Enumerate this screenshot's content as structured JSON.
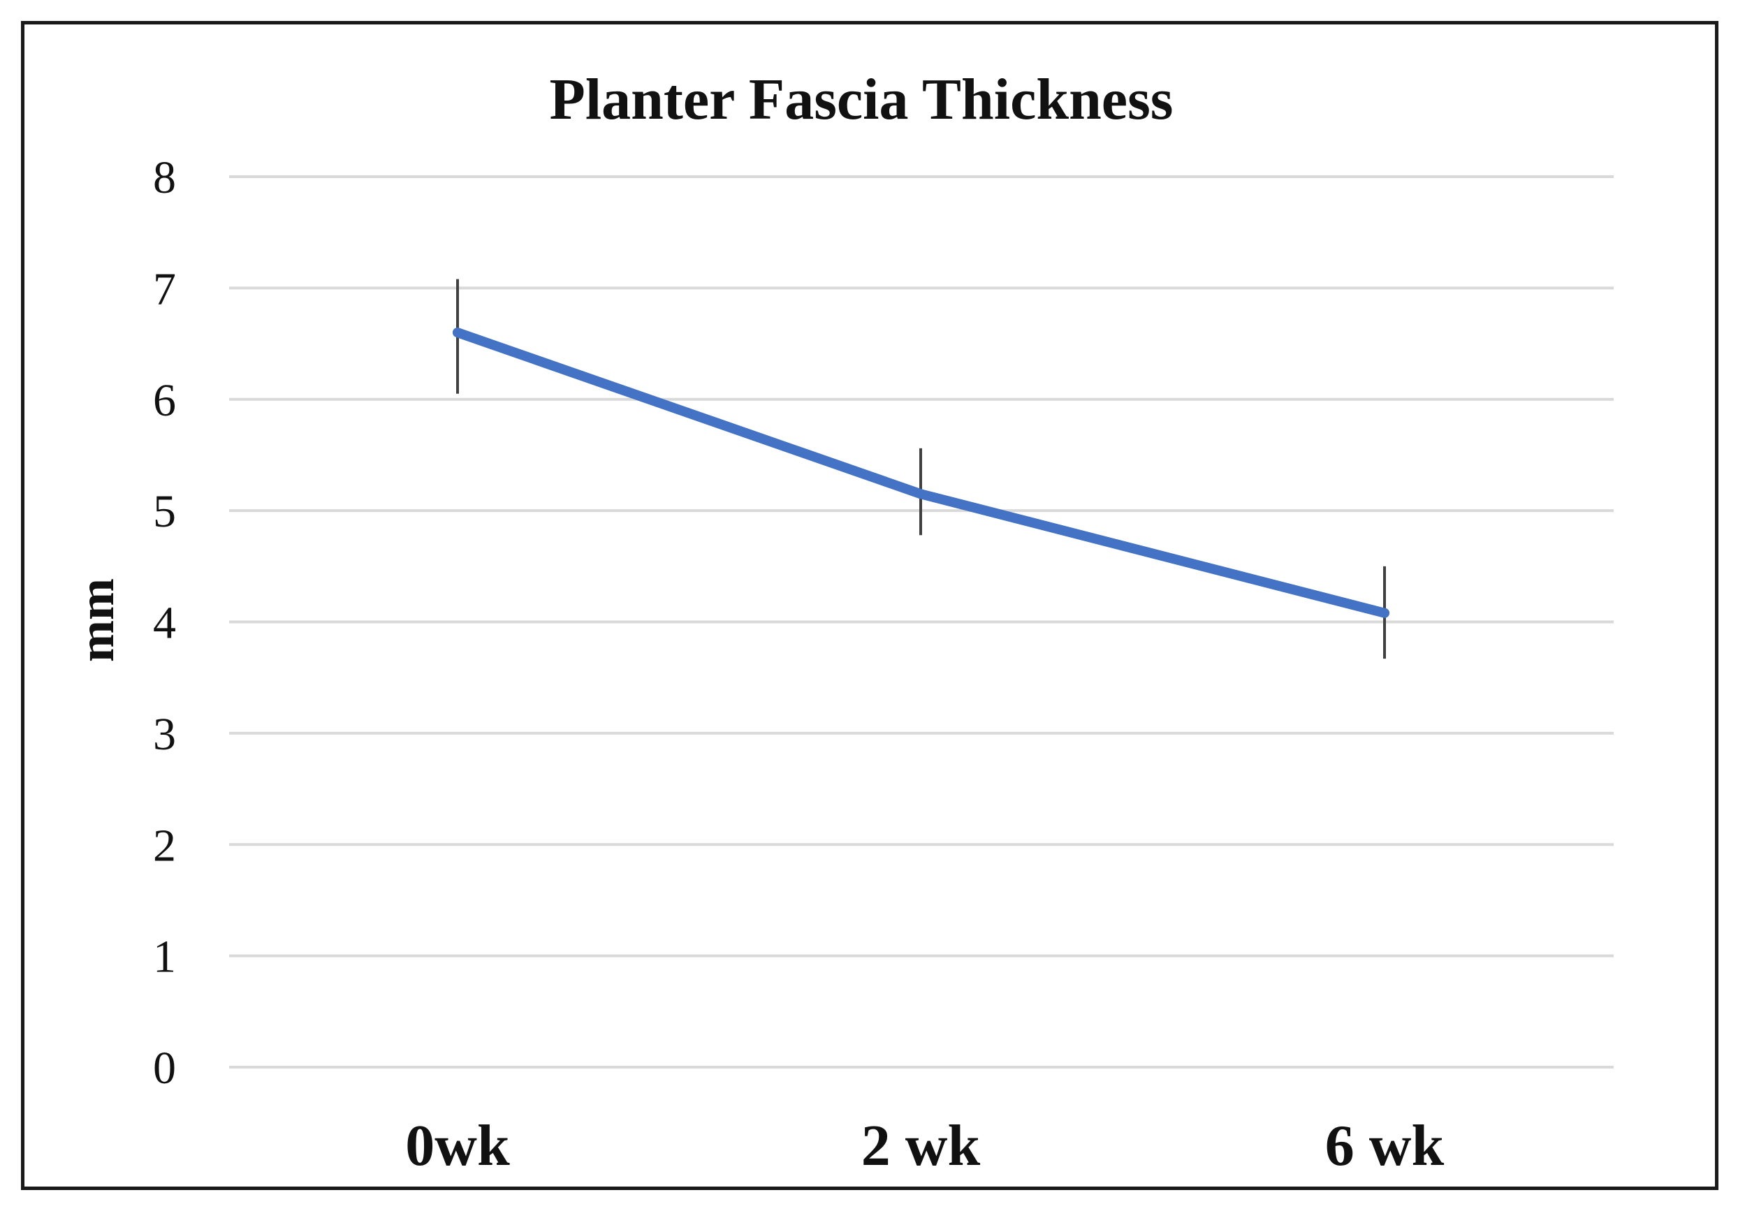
{
  "chart_data": {
    "type": "line",
    "title": "Planter Fascia Thickness",
    "xlabel": "",
    "ylabel": "mm",
    "categories": [
      "0wk",
      "2 wk",
      "6 wk"
    ],
    "series": [
      {
        "values": [
          6.6,
          5.15,
          4.08
        ],
        "error_low": [
          6.05,
          4.78,
          3.67
        ],
        "error_high": [
          7.08,
          5.56,
          4.5
        ]
      }
    ],
    "ylim": [
      0,
      8
    ],
    "yticks": [
      0,
      1,
      2,
      3,
      4,
      5,
      6,
      7,
      8
    ],
    "grid": true,
    "legend": "none",
    "colors": {
      "line": "#4472C4",
      "grid": "#d9d9d9",
      "errorbar": "#404040"
    }
  }
}
